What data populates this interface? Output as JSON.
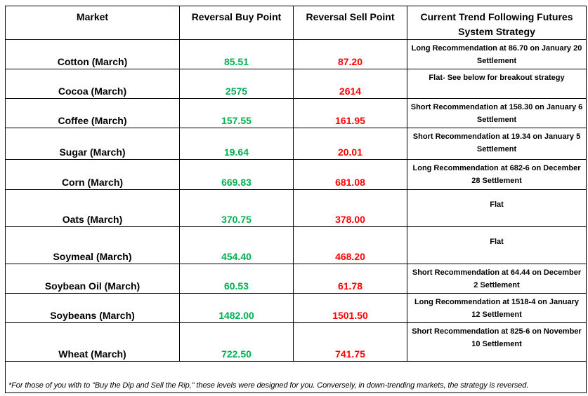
{
  "headers": {
    "market": "Market",
    "buy": "Reversal Buy Point",
    "sell": "Reversal Sell Point",
    "strategy": "Current Trend Following Futures System Strategy"
  },
  "rows": [
    {
      "market": "Cotton (March)",
      "buy": "85.51",
      "sell": "87.20",
      "strategy": "Long Recommendation at 86.70 on January 20 Settlement"
    },
    {
      "market": "Cocoa (March)",
      "buy": "2575",
      "sell": "2614",
      "strategy": "Flat- See below for breakout strategy"
    },
    {
      "market": "Coffee (March)",
      "buy": "157.55",
      "sell": "161.95",
      "strategy": "Short Recommendation at 158.30 on January 6 Settlement"
    },
    {
      "market": "Sugar (March)",
      "buy": "19.64",
      "sell": "20.01",
      "strategy": "Short Recommendation at 19.34 on January 5 Settlement"
    },
    {
      "market": "Corn (March)",
      "buy": "669.83",
      "sell": "681.08",
      "strategy": "Long Recommendation at 682-6 on December 28 Settlement"
    },
    {
      "market": "Oats (March)",
      "buy": "370.75",
      "sell": "378.00",
      "strategy": "Flat"
    },
    {
      "market": "Soymeal (March)",
      "buy": "454.40",
      "sell": "468.20",
      "strategy": "Flat"
    },
    {
      "market": "Soybean Oil (March)",
      "buy": "60.53",
      "sell": "61.78",
      "strategy": "Short Recommendation at 64.44 on December 2 Settlement"
    },
    {
      "market": "Soybeans (March)",
      "buy": "1482.00",
      "sell": "1501.50",
      "strategy": "Long Recommendation at 1518-4 on January 12 Settlement"
    },
    {
      "market": "Wheat (March)",
      "buy": "722.50",
      "sell": "741.75",
      "strategy": "Short Recommendation at 825-6 on November 10 Settlement"
    }
  ],
  "footnote": "*For those of you with to \"Buy the Dip and Sell the Rip,\" these levels were designed for you. Conversely, in down-trending markets, the strategy is reversed.",
  "colors": {
    "buy": "#00b050",
    "sell": "#ff0000"
  }
}
